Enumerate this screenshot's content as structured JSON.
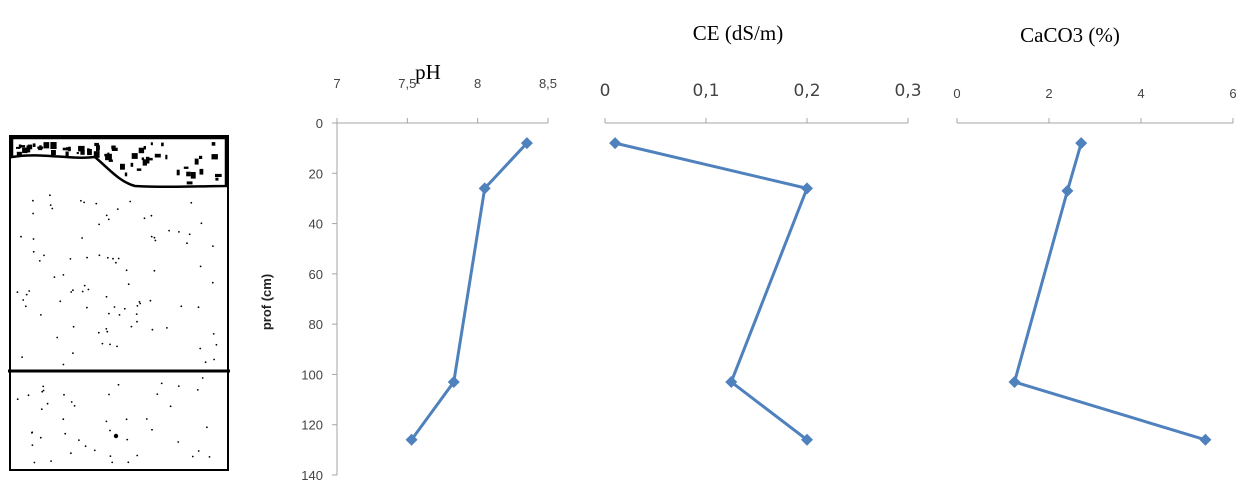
{
  "chart_data": [
    {
      "type": "line",
      "title": "pH",
      "x_ticks": [
        "7",
        "7,5",
        "8",
        "8,5"
      ],
      "xlim": [
        7,
        8.5
      ],
      "y_ticks": [
        "0",
        "20",
        "40",
        "60",
        "80",
        "100",
        "120",
        "140"
      ],
      "ylim": [
        0,
        140
      ],
      "ylabel": "prof (cm)",
      "series": [
        {
          "points": [
            [
              8.35,
              8
            ],
            [
              8.05,
              26
            ],
            [
              7.83,
              103
            ],
            [
              7.53,
              126
            ]
          ]
        }
      ]
    },
    {
      "type": "line",
      "title": "CE (dS/m)",
      "x_ticks": [
        "0",
        "0,1",
        "0,2",
        "0,3"
      ],
      "xlim": [
        0,
        0.3
      ],
      "ylim": [
        0,
        140
      ],
      "series": [
        {
          "points": [
            [
              0.01,
              8
            ],
            [
              0.2,
              26
            ],
            [
              0.125,
              103
            ],
            [
              0.2,
              126
            ]
          ]
        }
      ]
    },
    {
      "type": "line",
      "title": "CaCO3 (%)",
      "x_ticks": [
        "0",
        "2",
        "4",
        "6"
      ],
      "xlim": [
        0,
        6
      ],
      "ylim": [
        0,
        140
      ],
      "series": [
        {
          "points": [
            [
              2.7,
              8
            ],
            [
              2.4,
              27
            ],
            [
              1.25,
              103
            ],
            [
              5.4,
              126
            ]
          ]
        }
      ]
    }
  ],
  "colors": {
    "series": "#4f81bd",
    "axis": "#a6a6a6"
  }
}
